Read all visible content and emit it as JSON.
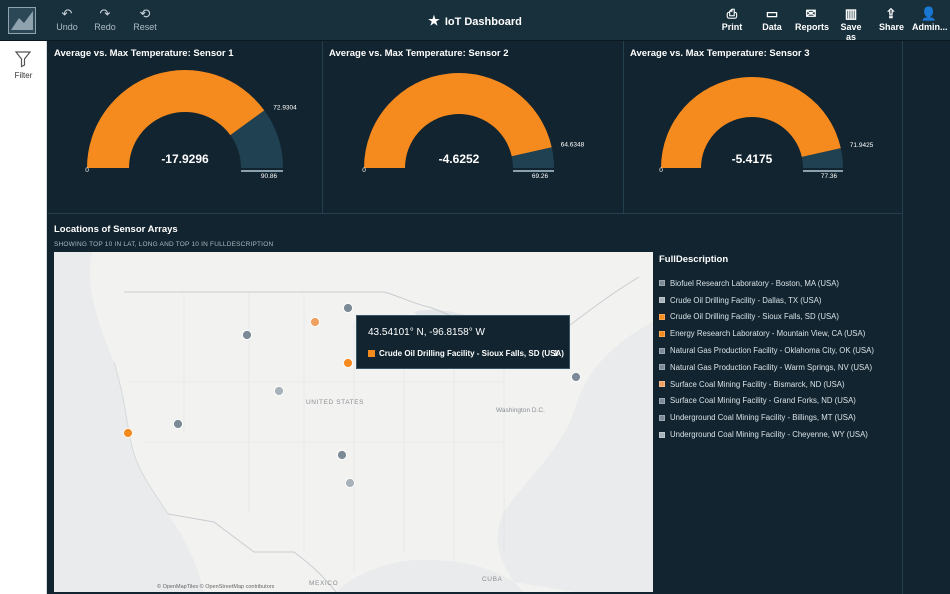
{
  "toolbar": {
    "undo": "Undo",
    "redo": "Redo",
    "reset": "Reset",
    "title": "IoT Dashboard",
    "print": "Print",
    "data": "Data",
    "reports": "Reports",
    "save_as": "Save as",
    "share": "Share",
    "admin": "Admin..."
  },
  "filter": {
    "label": "Filter"
  },
  "gauges": [
    {
      "title": "Average vs. Max Temperature: Sensor 1",
      "value": "-17.9296",
      "min": "0",
      "target": "72.9304",
      "max": "90.86",
      "fill_fraction": 0.8
    },
    {
      "title": "Average vs. Max Temperature: Sensor 2",
      "value": "-4.6252",
      "min": "0",
      "target": "64.6348",
      "max": "69.26",
      "fill_fraction": 0.93
    },
    {
      "title": "Average vs. Max Temperature: Sensor 3",
      "value": "-5.4175",
      "min": "0",
      "target": "71.9425",
      "max": "77.36",
      "fill_fraction": 0.93
    }
  ],
  "map": {
    "title": "Locations of Sensor Arrays",
    "subtitle": "SHOWING TOP 10 IN LAT, LONG AND TOP 10 IN FULLDESCRIPTION",
    "labels": {
      "country": "UNITED STATES",
      "city": "Washington D.C.",
      "mexico": "MEXICO",
      "cuba": "CUBA"
    },
    "attribution": "© OpenMapTiles © OpenStreetMap contributors"
  },
  "tooltip": {
    "coord": "43.54101° N, -96.8158° W",
    "item": "Crude Oil Drilling Facility - Sioux Falls, SD (USA)",
    "count": "1"
  },
  "legend": {
    "title": "FullDescription",
    "items": [
      {
        "label": "Biofuel Research Laboratory - Boston, MA (USA)",
        "color": "#7b8a96"
      },
      {
        "label": "Crude Oil Drilling Facility - Dallas, TX (USA)",
        "color": "#a8b2ba"
      },
      {
        "label": "Crude Oil Drilling Facility - Sioux Falls, SD (USA)",
        "color": "#f58a1f"
      },
      {
        "label": "Energy Research Laboratory - Mountain View, CA (USA)",
        "color": "#f58a1f"
      },
      {
        "label": "Natural Gas Production Facility - Oklahoma City, OK (USA)",
        "color": "#7b8a96"
      },
      {
        "label": "Natural Gas Production Facility - Warm Springs, NV (USA)",
        "color": "#7b8a96"
      },
      {
        "label": "Surface Coal Mining Facility - Bismarck, ND (USA)",
        "color": "#f0a060"
      },
      {
        "label": "Surface Coal Mining Facility - Grand Forks, ND (USA)",
        "color": "#7b8a96"
      },
      {
        "label": "Underground Coal Mining Facility - Billings, MT (USA)",
        "color": "#7b8a96"
      },
      {
        "label": "Underground Coal Mining Facility - Cheyenne, WY (USA)",
        "color": "#a8b2ba"
      }
    ]
  },
  "colors": {
    "orange": "#f58a1f",
    "gauge_track": "#1f4152",
    "point_grey": "#7b8a96"
  }
}
